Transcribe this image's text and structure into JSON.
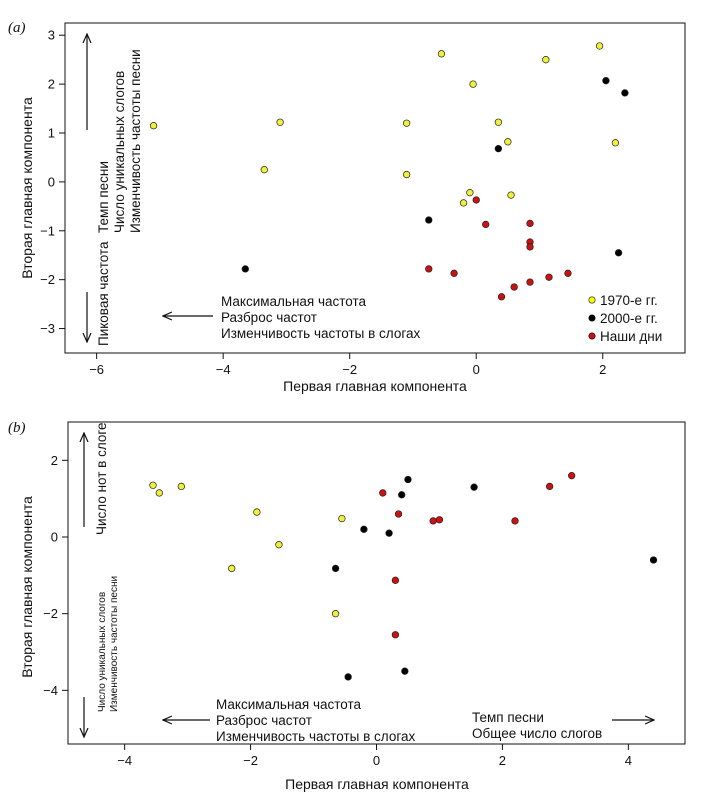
{
  "chart_data": [
    {
      "type": "scatter",
      "panel_label": "(a)",
      "xlabel": "Первая главная компонента",
      "ylabel": "Вторая главная компонента",
      "xlim": [
        -6.5,
        3.3
      ],
      "ylim": [
        -3.5,
        3.25
      ],
      "xticks": [
        -6,
        -4,
        -2,
        0,
        2
      ],
      "yticks": [
        -3,
        -2,
        -1,
        0,
        1,
        2,
        3
      ],
      "annotations": {
        "left_lines": [
          "Максимальная частота",
          "Разброс частот",
          "Изменчивость частоты в слогах"
        ],
        "up_lines": [
          "Темп песни",
          "Число уникальных слогов",
          "Изменчивость частоты песни"
        ],
        "down_lines": [
          "Пиковая частота"
        ]
      },
      "legend": [
        {
          "name": "1970-е гг.",
          "color": "#ffff00"
        },
        {
          "name": "2000-е гг.",
          "color": "#000000"
        },
        {
          "name": "Наши дни",
          "color": "#cc1111"
        }
      ],
      "series": [
        {
          "name": "1970-е гг.",
          "color": "#f0ef3a",
          "x": [
            -5.1,
            -3.1,
            -3.35,
            -1.1,
            -1.1,
            -0.55,
            -0.05,
            -0.1,
            -0.2,
            0.35,
            0.5,
            0.55,
            1.1,
            1.95,
            2.2
          ],
          "y": [
            1.15,
            1.22,
            0.25,
            1.2,
            0.15,
            2.62,
            2.0,
            -0.22,
            -0.43,
            1.22,
            0.82,
            -0.27,
            2.5,
            2.78,
            0.8
          ]
        },
        {
          "name": "2000-е гг.",
          "color": "#000000",
          "x": [
            -3.65,
            -0.75,
            0.35,
            2.05,
            2.35,
            2.25
          ],
          "y": [
            -1.78,
            -0.78,
            0.68,
            2.07,
            1.82,
            -1.45
          ]
        },
        {
          "name": "Наши дни",
          "color": "#cc1111",
          "x": [
            0.0,
            0.15,
            -0.75,
            -0.35,
            0.4,
            0.6,
            0.85,
            0.85,
            0.85,
            0.85,
            1.15,
            1.45
          ],
          "y": [
            -0.37,
            -0.87,
            -1.78,
            -1.87,
            -2.35,
            -2.15,
            -0.85,
            -1.23,
            -1.33,
            -2.05,
            -1.95,
            -1.87
          ]
        }
      ]
    },
    {
      "type": "scatter",
      "panel_label": "(b)",
      "xlabel": "Первая главная компонента",
      "ylabel": "Вторая главная компонента",
      "xlim": [
        -4.9,
        4.9
      ],
      "ylim": [
        -5.4,
        3.0
      ],
      "xticks": [
        -4,
        -2,
        0,
        2,
        4
      ],
      "yticks": [
        -4,
        -2,
        0,
        2
      ],
      "annotations": {
        "left_lines": [
          "Максимальная частота",
          "Разброс частот",
          "Изменчивость частоты в слогах"
        ],
        "right_lines": [
          "Темп песни",
          "Общее число слогов"
        ],
        "up_lines": [
          "Число нот в слоге"
        ],
        "down_lines": [
          "Число уникальных слогов",
          "Изменчивость частоты песни"
        ]
      },
      "series": [
        {
          "name": "1970-е гг.",
          "color": "#f0ef3a",
          "x": [
            -3.55,
            -3.45,
            -3.1,
            -1.9,
            -1.55,
            -2.3,
            -0.55,
            -0.65
          ],
          "y": [
            1.35,
            1.15,
            1.32,
            0.65,
            -0.2,
            -0.82,
            0.48,
            -2.0
          ]
        },
        {
          "name": "2000-е гг.",
          "color": "#000000",
          "x": [
            -0.2,
            0.2,
            0.4,
            0.5,
            1.55,
            -0.65,
            -0.45,
            0.45,
            4.4
          ],
          "y": [
            0.2,
            0.1,
            1.1,
            1.5,
            1.3,
            -0.82,
            -3.65,
            -3.5,
            -0.6
          ]
        },
        {
          "name": "Наши дни",
          "color": "#cc1111",
          "x": [
            0.1,
            0.35,
            0.9,
            1.0,
            2.2,
            2.75,
            3.1,
            0.3,
            0.3
          ],
          "y": [
            1.15,
            0.6,
            0.42,
            0.45,
            0.42,
            1.32,
            1.6,
            -1.13,
            -2.55
          ]
        }
      ]
    }
  ]
}
